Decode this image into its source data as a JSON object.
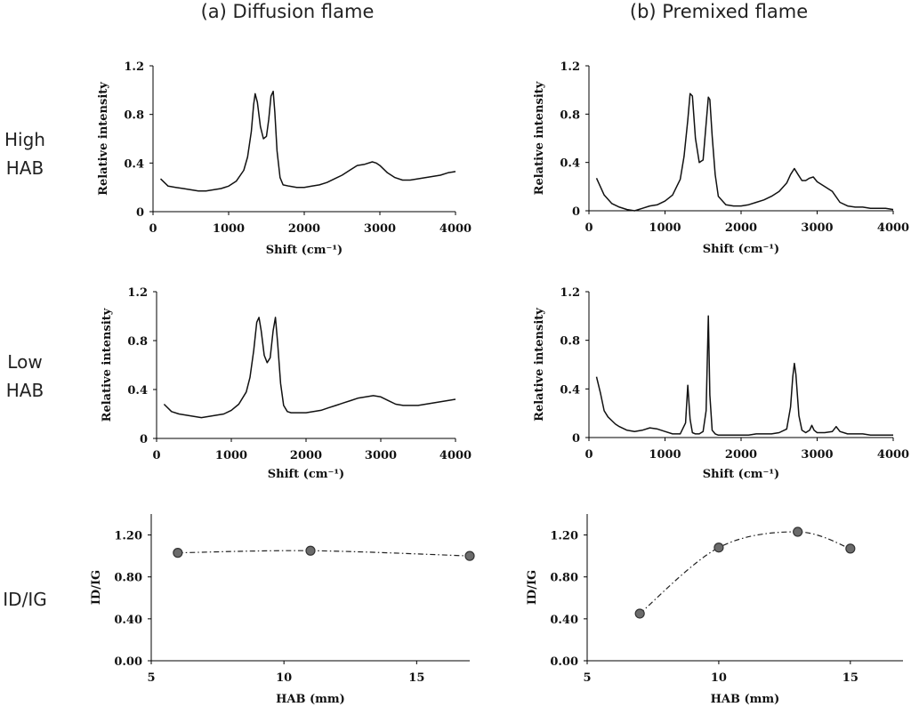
{
  "columns": {
    "left_title": "(a) Diffusion flame",
    "right_title": "(b) Premixed flame"
  },
  "rows": {
    "high_line1": "High",
    "high_line2": "HAB",
    "low_line1": "Low",
    "low_line2": "HAB",
    "ratio": "ID/IG"
  },
  "chart_data": [
    {
      "id": "diff-high",
      "type": "line",
      "title": "",
      "xlabel": "Shift (cm⁻¹)",
      "ylabel": "Relative intensity",
      "xlim": [
        0,
        4000
      ],
      "ylim": [
        0,
        1.2
      ],
      "x_ticks": [
        0,
        1000,
        2000,
        3000,
        4000
      ],
      "y_ticks": [
        0,
        0.4,
        0.8,
        1.2
      ],
      "y_tick_labels": [
        "0",
        "0.4",
        "0.8",
        "1.2"
      ],
      "x_tick_labels": [
        "0",
        "1000",
        "2000",
        "3000",
        "4000"
      ],
      "series": [
        {
          "x": [
            100,
            200,
            300,
            400,
            500,
            600,
            700,
            800,
            900,
            1000,
            1100,
            1200,
            1250,
            1300,
            1330,
            1350,
            1380,
            1420,
            1460,
            1500,
            1530,
            1560,
            1590,
            1610,
            1640,
            1680,
            1720,
            1800,
            1900,
            2000,
            2100,
            2200,
            2300,
            2400,
            2500,
            2600,
            2700,
            2800,
            2900,
            2950,
            3000,
            3100,
            3200,
            3300,
            3400,
            3500,
            3600,
            3700,
            3800,
            3900,
            4000
          ],
          "y": [
            0.27,
            0.21,
            0.2,
            0.19,
            0.18,
            0.17,
            0.17,
            0.18,
            0.19,
            0.21,
            0.25,
            0.34,
            0.45,
            0.66,
            0.88,
            0.97,
            0.9,
            0.7,
            0.6,
            0.62,
            0.76,
            0.95,
            0.99,
            0.82,
            0.5,
            0.28,
            0.22,
            0.21,
            0.2,
            0.2,
            0.21,
            0.22,
            0.24,
            0.27,
            0.3,
            0.34,
            0.38,
            0.39,
            0.41,
            0.4,
            0.38,
            0.32,
            0.28,
            0.26,
            0.26,
            0.27,
            0.28,
            0.29,
            0.3,
            0.32,
            0.33
          ]
        }
      ]
    },
    {
      "id": "prem-high",
      "type": "line",
      "title": "",
      "xlabel": "Shift (cm⁻¹)",
      "ylabel": "Relative intensity",
      "xlim": [
        0,
        4000
      ],
      "ylim": [
        0,
        1.2
      ],
      "x_ticks": [
        0,
        1000,
        2000,
        3000,
        4000
      ],
      "y_ticks": [
        0,
        0.4,
        0.8,
        1.2
      ],
      "y_tick_labels": [
        "0",
        "0.4",
        "0.8",
        "1.2"
      ],
      "x_tick_labels": [
        "0",
        "1000",
        "2000",
        "3000",
        "4000"
      ],
      "series": [
        {
          "x": [
            100,
            150,
            200,
            300,
            400,
            500,
            600,
            700,
            800,
            900,
            1000,
            1100,
            1200,
            1250,
            1300,
            1330,
            1360,
            1400,
            1450,
            1500,
            1540,
            1570,
            1590,
            1620,
            1660,
            1700,
            1800,
            1900,
            2000,
            2100,
            2200,
            2300,
            2400,
            2500,
            2600,
            2650,
            2700,
            2750,
            2800,
            2850,
            2900,
            2950,
            3000,
            3100,
            3200,
            3300,
            3400,
            3500,
            3600,
            3700,
            3800,
            3900,
            4000
          ],
          "y": [
            0.27,
            0.2,
            0.13,
            0.06,
            0.03,
            0.01,
            0.0,
            0.02,
            0.04,
            0.05,
            0.08,
            0.13,
            0.26,
            0.45,
            0.75,
            0.97,
            0.95,
            0.6,
            0.4,
            0.42,
            0.72,
            0.94,
            0.92,
            0.62,
            0.3,
            0.12,
            0.05,
            0.04,
            0.04,
            0.05,
            0.07,
            0.09,
            0.12,
            0.16,
            0.23,
            0.3,
            0.35,
            0.3,
            0.25,
            0.25,
            0.27,
            0.28,
            0.24,
            0.2,
            0.16,
            0.07,
            0.04,
            0.03,
            0.03,
            0.02,
            0.02,
            0.02,
            0.01
          ]
        }
      ]
    },
    {
      "id": "diff-low",
      "type": "line",
      "title": "",
      "xlabel": "Shift (cm⁻¹)",
      "ylabel": "Relative intensity",
      "xlim": [
        0,
        4000
      ],
      "ylim": [
        0,
        1.2
      ],
      "x_ticks": [
        0,
        1000,
        2000,
        3000,
        4000
      ],
      "y_ticks": [
        0,
        0.4,
        0.8,
        1.2
      ],
      "y_tick_labels": [
        "0",
        "0.4",
        "0.8",
        "1.2"
      ],
      "x_tick_labels": [
        "0",
        "1000",
        "2000",
        "3000",
        "4000"
      ],
      "series": [
        {
          "x": [
            100,
            200,
            300,
            400,
            500,
            600,
            700,
            800,
            900,
            1000,
            1100,
            1200,
            1250,
            1300,
            1340,
            1370,
            1400,
            1440,
            1480,
            1520,
            1560,
            1590,
            1620,
            1660,
            1700,
            1750,
            1800,
            1900,
            2000,
            2100,
            2200,
            2300,
            2400,
            2500,
            2600,
            2700,
            2800,
            2900,
            3000,
            3100,
            3200,
            3300,
            3400,
            3500,
            3600,
            3700,
            3800,
            3900,
            4000
          ],
          "y": [
            0.28,
            0.22,
            0.2,
            0.19,
            0.18,
            0.17,
            0.18,
            0.19,
            0.2,
            0.23,
            0.28,
            0.38,
            0.5,
            0.72,
            0.95,
            0.99,
            0.88,
            0.68,
            0.62,
            0.66,
            0.88,
            0.99,
            0.78,
            0.45,
            0.27,
            0.22,
            0.21,
            0.21,
            0.21,
            0.22,
            0.23,
            0.25,
            0.27,
            0.29,
            0.31,
            0.33,
            0.34,
            0.35,
            0.34,
            0.31,
            0.28,
            0.27,
            0.27,
            0.27,
            0.28,
            0.29,
            0.3,
            0.31,
            0.32
          ]
        }
      ]
    },
    {
      "id": "prem-low",
      "type": "line",
      "title": "",
      "xlabel": "Shift (cm⁻¹)",
      "ylabel": "Relative intensity",
      "xlim": [
        0,
        4000
      ],
      "ylim": [
        0,
        1.2
      ],
      "x_ticks": [
        0,
        1000,
        2000,
        3000,
        4000
      ],
      "y_ticks": [
        0,
        0.4,
        0.8,
        1.2
      ],
      "y_tick_labels": [
        "0",
        "0.4",
        "0.8",
        "1.2"
      ],
      "x_tick_labels": [
        "0",
        "1000",
        "2000",
        "3000",
        "4000"
      ],
      "series": [
        {
          "x": [
            100,
            150,
            200,
            250,
            300,
            350,
            400,
            500,
            600,
            700,
            800,
            900,
            1000,
            1100,
            1200,
            1270,
            1300,
            1330,
            1360,
            1400,
            1450,
            1500,
            1540,
            1570,
            1590,
            1620,
            1660,
            1700,
            1800,
            1900,
            2000,
            2100,
            2200,
            2300,
            2400,
            2500,
            2600,
            2650,
            2680,
            2700,
            2720,
            2760,
            2800,
            2850,
            2900,
            2930,
            2960,
            3000,
            3100,
            3200,
            3250,
            3300,
            3400,
            3500,
            3600,
            3700,
            3800,
            3900,
            4000
          ],
          "y": [
            0.5,
            0.37,
            0.22,
            0.17,
            0.14,
            0.11,
            0.09,
            0.06,
            0.05,
            0.06,
            0.08,
            0.07,
            0.05,
            0.03,
            0.03,
            0.12,
            0.43,
            0.15,
            0.04,
            0.03,
            0.03,
            0.05,
            0.22,
            1.0,
            0.35,
            0.06,
            0.03,
            0.02,
            0.02,
            0.02,
            0.02,
            0.02,
            0.03,
            0.03,
            0.03,
            0.04,
            0.07,
            0.25,
            0.5,
            0.61,
            0.52,
            0.18,
            0.06,
            0.04,
            0.06,
            0.1,
            0.06,
            0.04,
            0.04,
            0.05,
            0.09,
            0.05,
            0.03,
            0.03,
            0.03,
            0.02,
            0.02,
            0.02,
            0.02
          ]
        }
      ]
    },
    {
      "id": "diff-ratio",
      "type": "scatter",
      "title": "",
      "xlabel": "HAB (mm)",
      "ylabel": "ID/IG",
      "xlim": [
        5,
        17
      ],
      "ylim": [
        0,
        1.4
      ],
      "x_ticks": [
        5,
        10,
        15
      ],
      "y_ticks": [
        0,
        0.4,
        0.8,
        1.2
      ],
      "y_tick_labels": [
        "0.00",
        "0.40",
        "0.80",
        "1.20"
      ],
      "x_tick_labels": [
        "5",
        "10",
        "15"
      ],
      "series": [
        {
          "x": [
            6,
            11,
            17
          ],
          "y": [
            1.03,
            1.05,
            1.0
          ]
        }
      ]
    },
    {
      "id": "prem-ratio",
      "type": "scatter",
      "title": "",
      "xlabel": "HAB (mm)",
      "ylabel": "ID/IG",
      "xlim": [
        5,
        17
      ],
      "ylim": [
        0,
        1.4
      ],
      "x_ticks": [
        5,
        10,
        15
      ],
      "y_ticks": [
        0,
        0.4,
        0.8,
        1.2
      ],
      "y_tick_labels": [
        "0.00",
        "0.40",
        "0.80",
        "1.20"
      ],
      "x_tick_labels": [
        "5",
        "10",
        "15"
      ],
      "series": [
        {
          "x": [
            7,
            10,
            13,
            15
          ],
          "y": [
            0.45,
            1.08,
            1.23,
            1.07
          ]
        }
      ]
    }
  ]
}
